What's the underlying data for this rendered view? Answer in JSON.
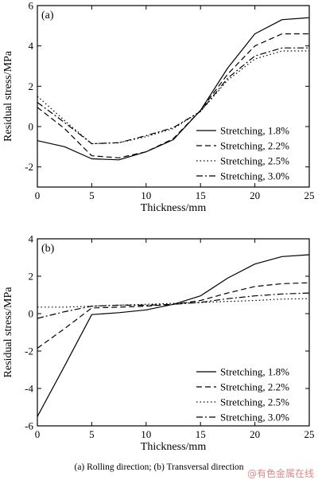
{
  "figure_caption": "(a) Rolling direction; (b) Transversal direction",
  "watermark": "@有色金属在线",
  "chart_data": [
    {
      "type": "line",
      "panel_label": "(a)",
      "title": "",
      "xlabel": "Thickness/mm",
      "ylabel": "Residual stress/MPa",
      "xlim": [
        0,
        25
      ],
      "ylim": [
        -3,
        6
      ],
      "xticks": [
        0,
        5,
        10,
        15,
        20,
        25
      ],
      "yticks": [
        -2,
        0,
        2,
        4,
        6
      ],
      "grid": false,
      "legend_position": "bottom-right",
      "x": [
        0,
        2.5,
        5,
        7.5,
        10,
        12.5,
        15,
        17.5,
        20,
        22.5,
        25
      ],
      "series": [
        {
          "name": "Stretching, 1.8%",
          "style": "solid",
          "values": [
            -0.7,
            -1.0,
            -1.6,
            -1.65,
            -1.25,
            -0.65,
            0.8,
            2.9,
            4.6,
            5.3,
            5.4
          ]
        },
        {
          "name": "Stretching, 2.2%",
          "style": "dashed",
          "values": [
            0.95,
            -0.1,
            -1.45,
            -1.55,
            -1.25,
            -0.6,
            0.8,
            2.6,
            4.0,
            4.6,
            4.6
          ]
        },
        {
          "name": "Stretching, 2.5%",
          "style": "dotted",
          "values": [
            1.5,
            0.3,
            -0.85,
            -0.8,
            -0.5,
            -0.1,
            0.75,
            2.3,
            3.35,
            3.75,
            3.75
          ]
        },
        {
          "name": "Stretching, 3.0%",
          "style": "dashdot",
          "values": [
            1.2,
            0.2,
            -0.85,
            -0.8,
            -0.45,
            -0.05,
            0.75,
            2.4,
            3.5,
            3.9,
            3.9
          ]
        }
      ]
    },
    {
      "type": "line",
      "panel_label": "(b)",
      "title": "",
      "xlabel": "Thickness/mm",
      "ylabel": "Residual stress/MPa",
      "xlim": [
        0,
        25
      ],
      "ylim": [
        -6,
        4
      ],
      "xticks": [
        0,
        5,
        10,
        15,
        20,
        25
      ],
      "yticks": [
        -6,
        -4,
        -2,
        0,
        2,
        4
      ],
      "grid": false,
      "legend_position": "bottom-right",
      "x": [
        0,
        2.5,
        5,
        7.5,
        10,
        12.5,
        15,
        17.5,
        20,
        22.5,
        25
      ],
      "series": [
        {
          "name": "Stretching, 1.8%",
          "style": "solid",
          "values": [
            -5.5,
            -2.8,
            -0.05,
            0.05,
            0.2,
            0.5,
            0.95,
            1.9,
            2.65,
            3.05,
            3.15
          ]
        },
        {
          "name": "Stretching, 2.2%",
          "style": "dashed",
          "values": [
            -1.85,
            -0.8,
            0.3,
            0.35,
            0.4,
            0.5,
            0.7,
            1.1,
            1.45,
            1.6,
            1.65
          ]
        },
        {
          "name": "Stretching, 2.5%",
          "style": "dotted",
          "values": [
            0.35,
            0.35,
            0.4,
            0.45,
            0.5,
            0.55,
            0.6,
            0.65,
            0.7,
            0.78,
            0.8
          ]
        },
        {
          "name": "Stretching, 3.0%",
          "style": "dashdot",
          "values": [
            -0.25,
            0.1,
            0.4,
            0.45,
            0.45,
            0.5,
            0.6,
            0.8,
            0.95,
            1.05,
            1.1
          ]
        }
      ]
    }
  ]
}
